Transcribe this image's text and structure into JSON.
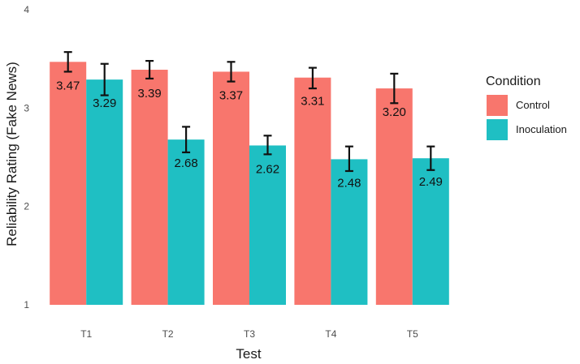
{
  "chart_data": {
    "type": "bar",
    "xlabel": "Test",
    "ylabel": "Reliability Rating (Fake News)",
    "categories": [
      "T1",
      "T2",
      "T3",
      "T4",
      "T5"
    ],
    "ylim": [
      1,
      4
    ],
    "yticks": [
      "1",
      "2",
      "3",
      "4"
    ],
    "grid": false,
    "legend_title": "Condition",
    "legend_position": "right",
    "series": [
      {
        "name": "Control",
        "color": "#f8766d",
        "values": [
          3.47,
          3.39,
          3.37,
          3.31,
          3.2
        ],
        "labels": [
          "3.47",
          "3.39",
          "3.37",
          "3.31",
          "3.20"
        ],
        "error_low": [
          3.37,
          3.3,
          3.27,
          3.2,
          3.05
        ],
        "error_high": [
          3.57,
          3.48,
          3.47,
          3.41,
          3.35
        ]
      },
      {
        "name": "Inoculation",
        "color": "#1fbfc3",
        "values": [
          3.29,
          2.68,
          2.62,
          2.48,
          2.49
        ],
        "labels": [
          "3.29",
          "2.68",
          "2.62",
          "2.48",
          "2.49"
        ],
        "error_low": [
          3.13,
          2.55,
          2.53,
          2.36,
          2.37
        ],
        "error_high": [
          3.45,
          2.81,
          2.72,
          2.61,
          2.61
        ]
      }
    ]
  }
}
